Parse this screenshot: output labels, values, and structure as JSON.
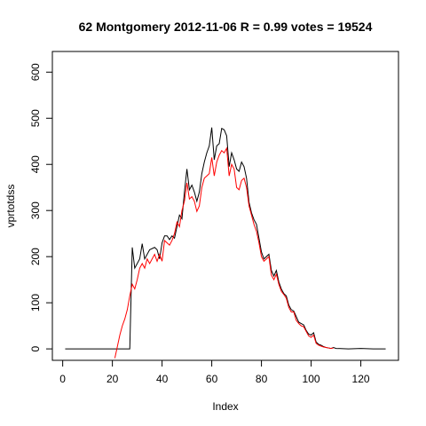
{
  "chart_data": {
    "type": "line",
    "title": "62 Montgomery 2012-11-06 R = 0.99 votes = 19524",
    "xlabel": "Index",
    "ylabel": "vprtotdss",
    "xlim": [
      1,
      130
    ],
    "ylim": [
      0,
      620
    ],
    "xticks": [
      0,
      20,
      40,
      60,
      80,
      100,
      120
    ],
    "yticks": [
      0,
      100,
      200,
      300,
      400,
      500,
      600
    ],
    "series": [
      {
        "color": "#000000",
        "points": [
          [
            1,
            0
          ],
          [
            27,
            0
          ],
          [
            28,
            220
          ],
          [
            29,
            175
          ],
          [
            31,
            195
          ],
          [
            32,
            228
          ],
          [
            33,
            195
          ],
          [
            35,
            215
          ],
          [
            37,
            220
          ],
          [
            38,
            215
          ],
          [
            39,
            195
          ],
          [
            40,
            230
          ],
          [
            41,
            245
          ],
          [
            42,
            245
          ],
          [
            43,
            237
          ],
          [
            44,
            245
          ],
          [
            45,
            240
          ],
          [
            46,
            265
          ],
          [
            47,
            290
          ],
          [
            48,
            282
          ],
          [
            49,
            340
          ],
          [
            50,
            390
          ],
          [
            51,
            345
          ],
          [
            52,
            355
          ],
          [
            53,
            340
          ],
          [
            54,
            320
          ],
          [
            55,
            340
          ],
          [
            56,
            380
          ],
          [
            57,
            405
          ],
          [
            58,
            425
          ],
          [
            59,
            440
          ],
          [
            60,
            480
          ],
          [
            61,
            410
          ],
          [
            62,
            440
          ],
          [
            63,
            445
          ],
          [
            64,
            478
          ],
          [
            65,
            475
          ],
          [
            66,
            462
          ],
          [
            67,
            395
          ],
          [
            68,
            425
          ],
          [
            69,
            410
          ],
          [
            70,
            390
          ],
          [
            71,
            385
          ],
          [
            72,
            405
          ],
          [
            73,
            395
          ],
          [
            74,
            370
          ],
          [
            75,
            318
          ],
          [
            76,
            295
          ],
          [
            77,
            280
          ],
          [
            78,
            270
          ],
          [
            79,
            240
          ],
          [
            80,
            210
          ],
          [
            81,
            195
          ],
          [
            82,
            200
          ],
          [
            83,
            205
          ],
          [
            84,
            170
          ],
          [
            85,
            158
          ],
          [
            86,
            170
          ],
          [
            87,
            145
          ],
          [
            88,
            130
          ],
          [
            89,
            120
          ],
          [
            90,
            115
          ],
          [
            91,
            95
          ],
          [
            92,
            85
          ],
          [
            93,
            82
          ],
          [
            94,
            70
          ],
          [
            95,
            58
          ],
          [
            96,
            55
          ],
          [
            97,
            52
          ],
          [
            98,
            40
          ],
          [
            99,
            32
          ],
          [
            100,
            30
          ],
          [
            101,
            35
          ],
          [
            102,
            15
          ],
          [
            103,
            10
          ],
          [
            104,
            8
          ],
          [
            105,
            5
          ],
          [
            106,
            3
          ],
          [
            107,
            2
          ],
          [
            108,
            1
          ],
          [
            109,
            3
          ],
          [
            110,
            1
          ],
          [
            115,
            0
          ],
          [
            120,
            1
          ],
          [
            125,
            0
          ],
          [
            130,
            0
          ]
        ]
      },
      {
        "color": "#ff0000",
        "points": [
          [
            21,
            -20
          ],
          [
            22,
            5
          ],
          [
            23,
            30
          ],
          [
            24,
            50
          ],
          [
            25,
            65
          ],
          [
            26,
            85
          ],
          [
            27,
            115
          ],
          [
            28,
            140
          ],
          [
            29,
            130
          ],
          [
            30,
            150
          ],
          [
            31,
            175
          ],
          [
            32,
            185
          ],
          [
            33,
            175
          ],
          [
            34,
            195
          ],
          [
            35,
            185
          ],
          [
            36,
            195
          ],
          [
            37,
            205
          ],
          [
            38,
            190
          ],
          [
            39,
            205
          ],
          [
            40,
            190
          ],
          [
            41,
            235
          ],
          [
            42,
            230
          ],
          [
            43,
            225
          ],
          [
            44,
            235
          ],
          [
            45,
            250
          ],
          [
            46,
            275
          ],
          [
            47,
            265
          ],
          [
            48,
            300
          ],
          [
            49,
            320
          ],
          [
            50,
            360
          ],
          [
            51,
            325
          ],
          [
            52,
            330
          ],
          [
            53,
            320
          ],
          [
            54,
            298
          ],
          [
            55,
            310
          ],
          [
            56,
            350
          ],
          [
            57,
            370
          ],
          [
            58,
            375
          ],
          [
            59,
            380
          ],
          [
            60,
            415
          ],
          [
            61,
            375
          ],
          [
            62,
            405
          ],
          [
            63,
            420
          ],
          [
            64,
            430
          ],
          [
            65,
            425
          ],
          [
            66,
            435
          ],
          [
            67,
            375
          ],
          [
            68,
            400
          ],
          [
            69,
            390
          ],
          [
            70,
            350
          ],
          [
            71,
            345
          ],
          [
            72,
            365
          ],
          [
            73,
            370
          ],
          [
            74,
            350
          ],
          [
            75,
            310
          ],
          [
            76,
            290
          ],
          [
            77,
            270
          ],
          [
            78,
            255
          ],
          [
            79,
            230
          ],
          [
            80,
            200
          ],
          [
            81,
            190
          ],
          [
            82,
            195
          ],
          [
            83,
            200
          ],
          [
            84,
            160
          ],
          [
            85,
            150
          ],
          [
            86,
            162
          ],
          [
            87,
            140
          ],
          [
            88,
            125
          ],
          [
            89,
            118
          ],
          [
            90,
            110
          ],
          [
            91,
            90
          ],
          [
            92,
            80
          ],
          [
            93,
            80
          ],
          [
            94,
            62
          ],
          [
            95,
            55
          ],
          [
            96,
            50
          ],
          [
            97,
            48
          ],
          [
            98,
            38
          ],
          [
            99,
            28
          ],
          [
            100,
            25
          ],
          [
            101,
            30
          ],
          [
            102,
            12
          ],
          [
            103,
            8
          ],
          [
            104,
            6
          ],
          [
            105,
            4
          ],
          [
            106,
            3
          ],
          [
            107,
            2
          ],
          [
            108,
            1
          ],
          [
            109,
            2
          ]
        ]
      }
    ]
  }
}
